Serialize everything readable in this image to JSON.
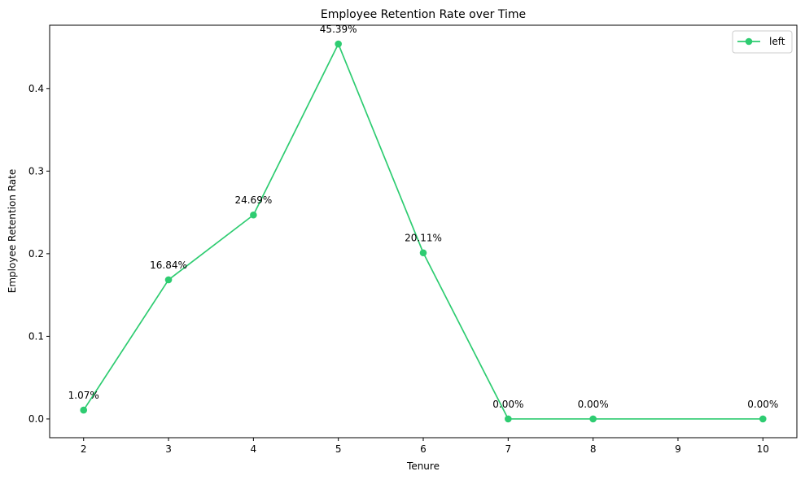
{
  "chart_data": {
    "type": "line",
    "title": "Employee Retention Rate over Time",
    "xlabel": "Tenure",
    "ylabel": "Employee Retention Rate",
    "xlim": [
      1.6,
      10.4
    ],
    "ylim": [
      -0.0227,
      0.4766
    ],
    "x_ticks": [
      2,
      3,
      4,
      5,
      6,
      7,
      8,
      9,
      10
    ],
    "y_ticks": [
      0.0,
      0.1,
      0.2,
      0.3,
      0.4
    ],
    "y_tick_labels": [
      "0.0",
      "0.1",
      "0.2",
      "0.3",
      "0.4"
    ],
    "grid": false,
    "legend_position": "top-right",
    "series": [
      {
        "name": "left",
        "color": "#2ecc71",
        "marker": "circle",
        "x": [
          2,
          3,
          4,
          5,
          6,
          7,
          8,
          10
        ],
        "y": [
          0.0107,
          0.1684,
          0.2469,
          0.4539,
          0.2011,
          0.0,
          0.0,
          0.0
        ],
        "labels": [
          "1.07%",
          "16.84%",
          "24.69%",
          "45.39%",
          "20.11%",
          "0.00%",
          "0.00%",
          "0.00%"
        ]
      }
    ]
  }
}
